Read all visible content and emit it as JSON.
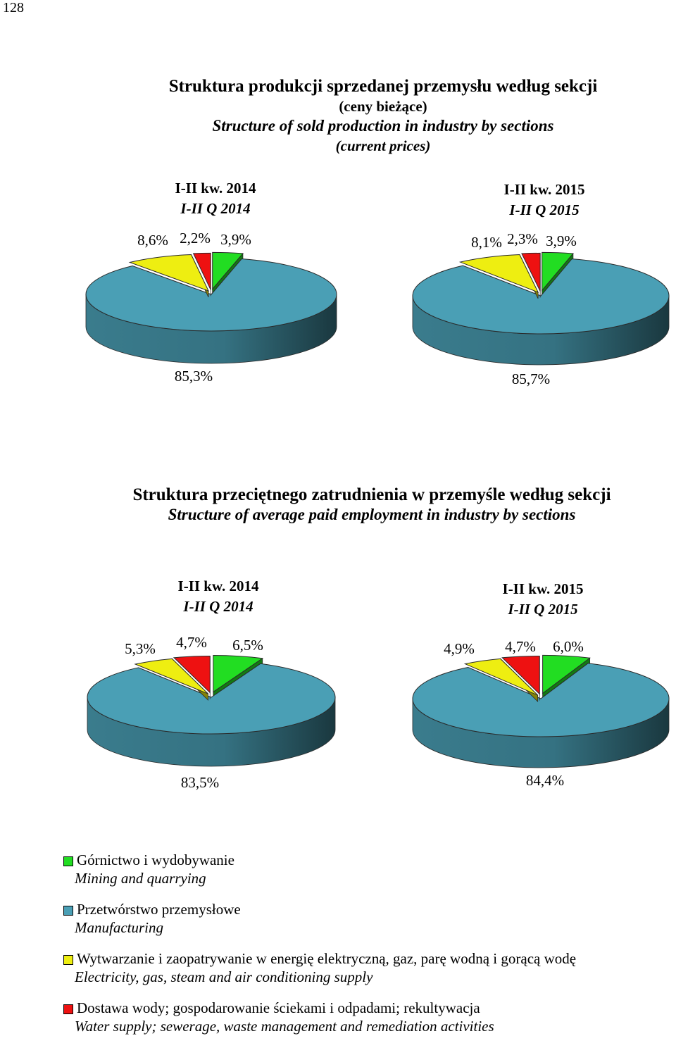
{
  "page_number": "128",
  "chart1": {
    "title_pl": "Struktura produkcji sprzedanej przemysłu według sekcji",
    "subtitle_pl": "(ceny bieżące)",
    "title_en": "Structure of sold production in industry by sections",
    "subtitle_en": "(current prices)"
  },
  "chart2": {
    "title_pl": "Struktura przeciętnego zatrudnienia w przemyśle według sekcji",
    "title_en": "Structure of average paid employment in industry by sections"
  },
  "colors": {
    "mining": "#22dd22",
    "manufacturing": "#4a9fb5",
    "electricity": "#eeee11",
    "water": "#ee1111"
  },
  "legend": [
    {
      "key": "mining",
      "pl": "Górnictwo i wydobywanie",
      "en": "Mining and quarrying"
    },
    {
      "key": "manufacturing",
      "pl": "Przetwórstwo przemysłowe",
      "en": "Manufacturing"
    },
    {
      "key": "electricity",
      "pl": "Wytwarzanie i zaopatrywanie w energię elektryczną, gaz, parę wodną i gorącą wodę",
      "en": "Electricity, gas, steam and air conditioning supply"
    },
    {
      "key": "water",
      "pl": "Dostawa wody; gospodarowanie ściekami i odpadami; rekultywacja",
      "en": "Water supply; sewerage, waste management and remediation activities"
    }
  ],
  "chart_data": [
    {
      "type": "pie",
      "group": "Struktura produkcji sprzedanej przemysłu według sekcji",
      "period_pl": "I-II kw. 2014",
      "period_en": "I-II Q 2014",
      "values": {
        "mining": 3.9,
        "manufacturing": 85.3,
        "electricity": 8.6,
        "water": 2.2
      },
      "labels": {
        "mining": "3,9%",
        "manufacturing": "85,3%",
        "electricity": "8,6%",
        "water": "2,2%"
      }
    },
    {
      "type": "pie",
      "group": "Struktura produkcji sprzedanej przemysłu według sekcji",
      "period_pl": "I-II kw. 2015",
      "period_en": "I-II Q 2015",
      "values": {
        "mining": 3.9,
        "manufacturing": 85.7,
        "electricity": 8.1,
        "water": 2.3
      },
      "labels": {
        "mining": "3,9%",
        "manufacturing": "85,7%",
        "electricity": "8,1%",
        "water": "2,3%"
      }
    },
    {
      "type": "pie",
      "group": "Struktura przeciętnego zatrudnienia w przemyśle według sekcji",
      "period_pl": "I-II kw. 2014",
      "period_en": "I-II Q 2014",
      "values": {
        "mining": 6.5,
        "manufacturing": 83.5,
        "electricity": 5.3,
        "water": 4.7
      },
      "labels": {
        "mining": "6,5%",
        "manufacturing": "83,5%",
        "electricity": "5,3%",
        "water": "4,7%"
      }
    },
    {
      "type": "pie",
      "group": "Struktura przeciętnego zatrudnienia w przemyśle według sekcji",
      "period_pl": "I-II kw. 2015",
      "period_en": "I-II Q 2015",
      "values": {
        "mining": 6.0,
        "manufacturing": 84.4,
        "electricity": 4.9,
        "water": 4.7
      },
      "labels": {
        "mining": "6,0%",
        "manufacturing": "84,4%",
        "electricity": "4,9%",
        "water": "4,7%"
      }
    }
  ]
}
